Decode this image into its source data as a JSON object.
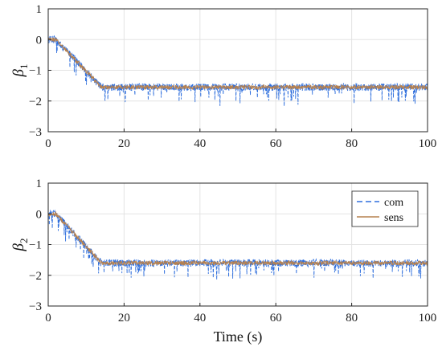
{
  "chart_data": [
    {
      "type": "line",
      "ylabel_symbol": "β",
      "ylabel_subscript": "1",
      "xlabel": "",
      "xlim": [
        0,
        100
      ],
      "ylim": [
        -3,
        1
      ],
      "xticks": [
        "0",
        "20",
        "40",
        "60",
        "80",
        "100"
      ],
      "yticks": [
        "1",
        "0",
        "-1",
        "-2",
        "-3"
      ],
      "grid": true,
      "series": [
        {
          "name": "com",
          "style": "dashed",
          "color": "#2f6fdd",
          "shape": {
            "x": [
              0,
              2,
              14,
              100
            ],
            "y": [
              0,
              0,
              -1.55,
              -1.55
            ]
          },
          "noise": 0.12,
          "spikes_down": -0.45
        },
        {
          "name": "sens",
          "style": "solid",
          "color": "#b6814f",
          "shape": {
            "x": [
              0,
              2,
              14,
              100
            ],
            "y": [
              0,
              0,
              -1.55,
              -1.55
            ]
          },
          "noise": 0.07
        }
      ]
    },
    {
      "type": "line",
      "ylabel_symbol": "β",
      "ylabel_subscript": "2",
      "xlabel": "Time (s)",
      "xlim": [
        0,
        100
      ],
      "ylim": [
        -3,
        1
      ],
      "xticks": [
        "0",
        "20",
        "40",
        "60",
        "80",
        "100"
      ],
      "yticks": [
        "1",
        "0",
        "-1",
        "-2",
        "-3"
      ],
      "grid": true,
      "legend": {
        "location": "upper-right",
        "entries": [
          "com",
          "sens"
        ]
      },
      "series": [
        {
          "name": "com",
          "style": "dashed",
          "color": "#2f6fdd",
          "shape": {
            "x": [
              0,
              2,
              14,
              100
            ],
            "y": [
              0,
              0,
              -1.6,
              -1.6
            ]
          },
          "noise": 0.12,
          "spikes_down": -0.45
        },
        {
          "name": "sens",
          "style": "solid",
          "color": "#b6814f",
          "shape": {
            "x": [
              0,
              2,
              14,
              100
            ],
            "y": [
              0,
              0,
              -1.6,
              -1.6
            ]
          },
          "noise": 0.07
        }
      ]
    }
  ]
}
